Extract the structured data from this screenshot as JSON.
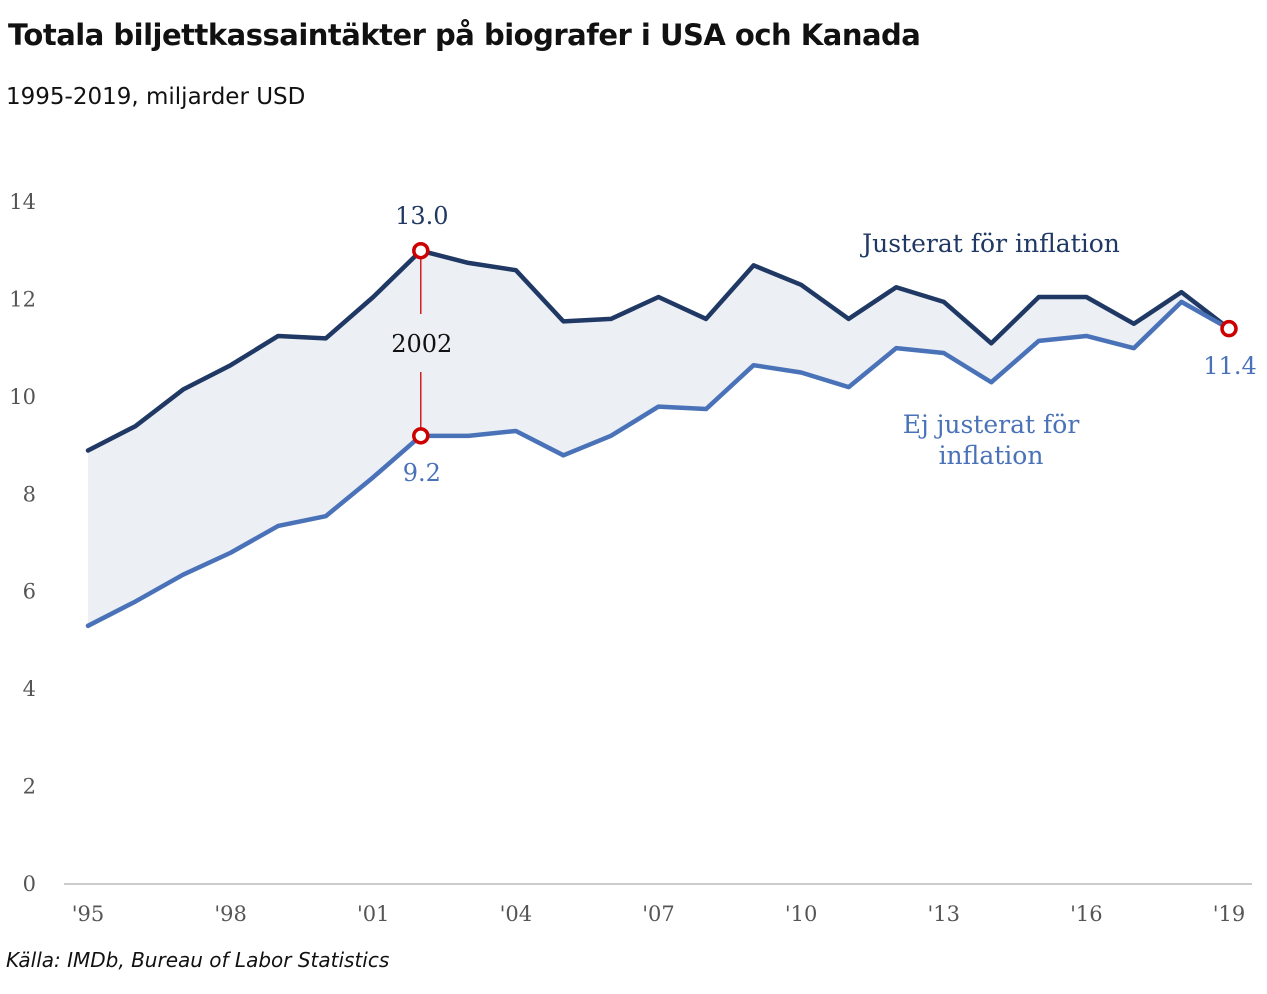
{
  "header": {
    "title": "Totala biljettkassaintäkter på biografer i USA och Kanada",
    "subtitle": "1995-2019, miljarder USD"
  },
  "footer": {
    "source": "Källa: IMDb, Bureau of Labor Statistics"
  },
  "colors": {
    "adjusted": "#1f3864",
    "unadjusted": "#4a72b8",
    "fill": "#eceff4",
    "marker": "#cc0000",
    "axis": "#bbbbbb"
  },
  "chart_data": {
    "type": "line",
    "title": "Totala biljettkassaintäkter på biografer i USA och Kanada",
    "subtitle": "1995-2019, miljarder USD",
    "x": [
      1995,
      1996,
      1997,
      1998,
      1999,
      2000,
      2001,
      2002,
      2003,
      2004,
      2005,
      2006,
      2007,
      2008,
      2009,
      2010,
      2011,
      2012,
      2013,
      2014,
      2015,
      2016,
      2017,
      2018,
      2019
    ],
    "x_tick_values": [
      1995,
      1998,
      2001,
      2004,
      2007,
      2010,
      2013,
      2016,
      2019
    ],
    "x_tick_labels": [
      "'95",
      "'98",
      "'01",
      "'04",
      "'07",
      "'10",
      "'13",
      "'16",
      "'19"
    ],
    "y_ticks": [
      0,
      2,
      4,
      6,
      8,
      10,
      12,
      14
    ],
    "xlim": [
      1995,
      2019
    ],
    "ylim": [
      0,
      14
    ],
    "grid": false,
    "series": [
      {
        "name": "Justerat för inflation",
        "values": [
          8.9,
          9.4,
          10.15,
          10.65,
          11.25,
          11.2,
          12.05,
          13.0,
          12.75,
          12.6,
          11.55,
          11.6,
          12.05,
          11.6,
          12.7,
          12.3,
          11.6,
          12.25,
          11.95,
          11.1,
          12.05,
          12.05,
          11.5,
          12.15,
          11.4
        ]
      },
      {
        "name": "Ej justerat för inflation",
        "values": [
          5.3,
          5.8,
          6.35,
          6.8,
          7.35,
          7.55,
          8.35,
          9.2,
          9.2,
          9.3,
          8.8,
          9.2,
          9.8,
          9.75,
          10.65,
          10.5,
          10.2,
          11.0,
          10.9,
          10.3,
          11.15,
          11.25,
          11.0,
          11.95,
          11.4
        ]
      }
    ],
    "annotations": [
      {
        "text": "2002",
        "x": 2002
      },
      {
        "text": "13.0",
        "x": 2002,
        "y": 13.0
      },
      {
        "text": "9.2",
        "x": 2002,
        "y": 9.2
      },
      {
        "text": "11.4",
        "x": 2019,
        "y": 11.4
      }
    ],
    "series_labels": {
      "adjusted": "Justerat för inflation",
      "unadjusted_line1": "Ej justerat för",
      "unadjusted_line2": "inflation"
    }
  }
}
